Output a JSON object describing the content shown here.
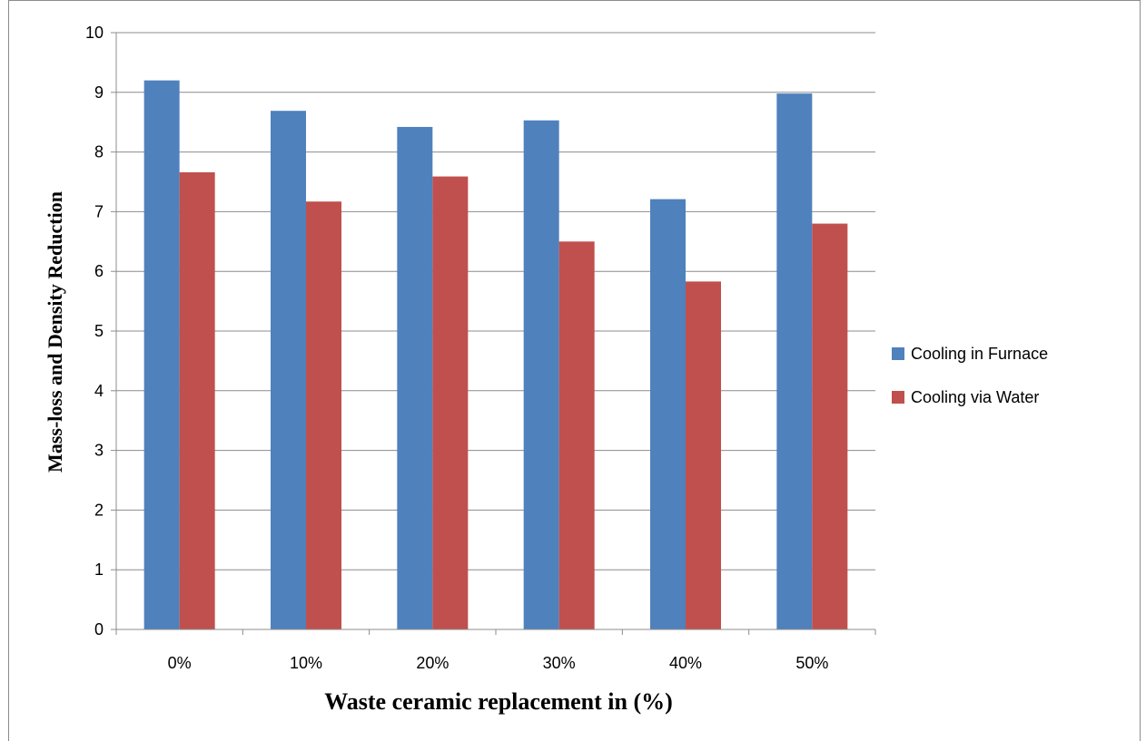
{
  "chart_data": {
    "type": "bar",
    "categories": [
      "0%",
      "10%",
      "20%",
      "30%",
      "40%",
      "50%"
    ],
    "series": [
      {
        "name": "Cooling in Furnace",
        "color": "#4f81bd",
        "values": [
          9.2,
          8.69,
          8.42,
          8.53,
          7.21,
          8.98
        ]
      },
      {
        "name": "Cooling via Water",
        "color": "#c0504d",
        "values": [
          7.66,
          7.17,
          7.59,
          6.5,
          5.83,
          6.8
        ]
      }
    ],
    "title": "",
    "xlabel": "Waste ceramic replacement in (%)",
    "ylabel": "Mass-loss and Density Reduction",
    "ylim": [
      0,
      10
    ],
    "yticks": [
      0,
      1,
      2,
      3,
      4,
      5,
      6,
      7,
      8,
      9,
      10
    ],
    "grid": true,
    "legend_position": "right"
  }
}
